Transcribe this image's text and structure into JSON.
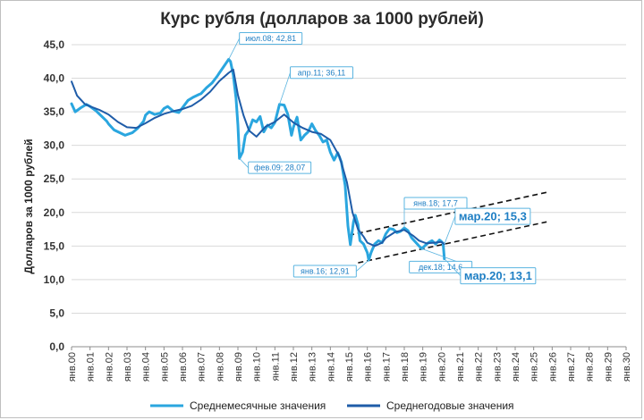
{
  "chart_data": {
    "type": "line",
    "title": "Курс рубля (долларов за 1000 рублей)",
    "ylabel": "Долларов за 1000 рублей",
    "xlabel": "",
    "ylim": [
      0,
      45
    ],
    "xlim": [
      2000,
      2030
    ],
    "yticks": [
      "0,0",
      "5,0",
      "10,0",
      "15,0",
      "20,0",
      "25,0",
      "30,0",
      "35,0",
      "40,0",
      "45,0"
    ],
    "xticks": [
      "янв.00",
      "янв.01",
      "янв.02",
      "янв.03",
      "янв.04",
      "янв.05",
      "янв.06",
      "янв.07",
      "янв.08",
      "янв.09",
      "янв.10",
      "янв.11",
      "янв.12",
      "янв.13",
      "янв.14",
      "янв.15",
      "янв.16",
      "янв.17",
      "янв.18",
      "янв.19",
      "янв.20",
      "янв.21",
      "янв.22",
      "янв.23",
      "янв.24",
      "янв.25",
      "янв.26",
      "янв.27",
      "янв.28",
      "янв.29",
      "янв.30"
    ],
    "series": [
      {
        "name": "Среднемесячные значения",
        "color": "#2aa6df",
        "points": [
          [
            2000.0,
            36.2
          ],
          [
            2000.2,
            35.0
          ],
          [
            2000.5,
            35.6
          ],
          [
            2000.8,
            36.1
          ],
          [
            2001.0,
            35.8
          ],
          [
            2001.3,
            35.2
          ],
          [
            2001.6,
            34.4
          ],
          [
            2001.9,
            33.6
          ],
          [
            2002.0,
            33.2
          ],
          [
            2002.3,
            32.3
          ],
          [
            2002.6,
            31.9
          ],
          [
            2002.9,
            31.5
          ],
          [
            2003.0,
            31.6
          ],
          [
            2003.3,
            31.9
          ],
          [
            2003.6,
            32.6
          ],
          [
            2003.9,
            33.6
          ],
          [
            2004.0,
            34.5
          ],
          [
            2004.2,
            35.0
          ],
          [
            2004.5,
            34.6
          ],
          [
            2004.8,
            34.8
          ],
          [
            2005.0,
            35.5
          ],
          [
            2005.2,
            35.8
          ],
          [
            2005.5,
            35.1
          ],
          [
            2005.8,
            34.9
          ],
          [
            2006.0,
            35.6
          ],
          [
            2006.3,
            36.7
          ],
          [
            2006.6,
            37.2
          ],
          [
            2006.9,
            37.6
          ],
          [
            2007.0,
            37.7
          ],
          [
            2007.3,
            38.6
          ],
          [
            2007.6,
            39.3
          ],
          [
            2007.9,
            40.4
          ],
          [
            2008.0,
            40.8
          ],
          [
            2008.3,
            42.0
          ],
          [
            2008.5,
            42.81
          ],
          [
            2008.6,
            42.5
          ],
          [
            2008.75,
            40.5
          ],
          [
            2008.9,
            37.0
          ],
          [
            2009.0,
            33.0
          ],
          [
            2009.08,
            28.07
          ],
          [
            2009.25,
            29.0
          ],
          [
            2009.4,
            31.5
          ],
          [
            2009.6,
            32.3
          ],
          [
            2009.8,
            33.8
          ],
          [
            2010.0,
            33.5
          ],
          [
            2010.2,
            34.3
          ],
          [
            2010.4,
            32.0
          ],
          [
            2010.6,
            33.0
          ],
          [
            2010.8,
            32.6
          ],
          [
            2011.0,
            33.4
          ],
          [
            2011.15,
            35.0
          ],
          [
            2011.25,
            36.11
          ],
          [
            2011.5,
            36.0
          ],
          [
            2011.7,
            34.6
          ],
          [
            2011.9,
            31.5
          ],
          [
            2012.0,
            32.7
          ],
          [
            2012.2,
            34.2
          ],
          [
            2012.4,
            30.8
          ],
          [
            2012.6,
            31.5
          ],
          [
            2012.8,
            32.0
          ],
          [
            2013.0,
            33.2
          ],
          [
            2013.2,
            32.2
          ],
          [
            2013.4,
            31.5
          ],
          [
            2013.6,
            30.5
          ],
          [
            2013.8,
            30.8
          ],
          [
            2014.0,
            29.0
          ],
          [
            2014.2,
            27.8
          ],
          [
            2014.4,
            28.9
          ],
          [
            2014.6,
            27.5
          ],
          [
            2014.8,
            24.0
          ],
          [
            2014.95,
            18.0
          ],
          [
            2015.08,
            15.2
          ],
          [
            2015.25,
            18.6
          ],
          [
            2015.35,
            19.6
          ],
          [
            2015.5,
            18.2
          ],
          [
            2015.6,
            15.8
          ],
          [
            2015.8,
            15.3
          ],
          [
            2016.0,
            14.0
          ],
          [
            2016.08,
            12.91
          ],
          [
            2016.2,
            14.0
          ],
          [
            2016.4,
            15.3
          ],
          [
            2016.6,
            15.8
          ],
          [
            2016.8,
            15.5
          ],
          [
            2017.0,
            16.8
          ],
          [
            2017.2,
            17.6
          ],
          [
            2017.4,
            17.5
          ],
          [
            2017.6,
            17.0
          ],
          [
            2017.8,
            17.2
          ],
          [
            2018.0,
            17.7
          ],
          [
            2018.2,
            17.3
          ],
          [
            2018.4,
            16.2
          ],
          [
            2018.6,
            15.6
          ],
          [
            2018.8,
            15.0
          ],
          [
            2018.95,
            14.6
          ],
          [
            2019.1,
            15.0
          ],
          [
            2019.3,
            15.5
          ],
          [
            2019.5,
            15.8
          ],
          [
            2019.7,
            15.3
          ],
          [
            2019.9,
            15.9
          ],
          [
            2020.0,
            15.7
          ],
          [
            2020.1,
            15.4
          ],
          [
            2020.17,
            13.1
          ]
        ]
      },
      {
        "name": "Среднегодовые значения",
        "color": "#1f5ca8",
        "points": [
          [
            2000.0,
            39.5
          ],
          [
            2000.3,
            37.4
          ],
          [
            2000.7,
            36.2
          ],
          [
            2001.0,
            35.8
          ],
          [
            2001.5,
            35.3
          ],
          [
            2002.0,
            34.6
          ],
          [
            2002.5,
            33.5
          ],
          [
            2003.0,
            32.7
          ],
          [
            2003.5,
            32.6
          ],
          [
            2004.0,
            33.3
          ],
          [
            2004.5,
            34.1
          ],
          [
            2005.0,
            34.7
          ],
          [
            2005.5,
            35.1
          ],
          [
            2006.0,
            35.4
          ],
          [
            2006.5,
            35.9
          ],
          [
            2007.0,
            36.8
          ],
          [
            2007.5,
            38.0
          ],
          [
            2008.0,
            39.6
          ],
          [
            2008.5,
            40.8
          ],
          [
            2008.75,
            41.3
          ],
          [
            2009.0,
            37.5
          ],
          [
            2009.3,
            34.5
          ],
          [
            2009.6,
            32.2
          ],
          [
            2010.0,
            31.3
          ],
          [
            2010.5,
            32.8
          ],
          [
            2011.0,
            33.5
          ],
          [
            2011.5,
            34.6
          ],
          [
            2012.0,
            33.4
          ],
          [
            2012.5,
            32.6
          ],
          [
            2013.0,
            32.0
          ],
          [
            2013.5,
            31.7
          ],
          [
            2014.0,
            30.8
          ],
          [
            2014.5,
            28.3
          ],
          [
            2014.9,
            24.5
          ],
          [
            2015.2,
            20.0
          ],
          [
            2015.5,
            17.5
          ],
          [
            2015.8,
            16.4
          ],
          [
            2016.0,
            15.5
          ],
          [
            2016.4,
            15.0
          ],
          [
            2016.8,
            15.5
          ],
          [
            2017.0,
            16.2
          ],
          [
            2017.5,
            17.1
          ],
          [
            2018.0,
            17.4
          ],
          [
            2018.5,
            16.5
          ],
          [
            2018.8,
            15.8
          ],
          [
            2019.2,
            15.4
          ],
          [
            2019.6,
            15.5
          ],
          [
            2020.0,
            15.6
          ],
          [
            2020.17,
            15.3
          ]
        ]
      }
    ],
    "trend_lines": [
      {
        "from": [
          2015.0,
          16.6
        ],
        "to": [
          2025.7,
          23.0
        ]
      },
      {
        "from": [
          2015.5,
          12.5
        ],
        "to": [
          2025.7,
          18.6
        ]
      }
    ],
    "annotations": [
      {
        "text": "июл.08; 42,81",
        "at": [
          2008.5,
          42.81
        ],
        "size": "small"
      },
      {
        "text": "апр.11; 36,11",
        "at": [
          2011.25,
          36.11
        ],
        "size": "small"
      },
      {
        "text": "фев.09; 28,07",
        "at": [
          2009.08,
          28.07
        ],
        "size": "small"
      },
      {
        "text": "янв.18;   17,7",
        "at": [
          2018.0,
          17.7
        ],
        "size": "small"
      },
      {
        "text": "янв.16; 12,91",
        "at": [
          2016.08,
          12.91
        ],
        "size": "small"
      },
      {
        "text": "дек.18;   14,6",
        "at": [
          2018.95,
          14.6
        ],
        "size": "small"
      },
      {
        "text": "мар.20;   15,3",
        "at": [
          2020.17,
          15.3
        ],
        "size": "big"
      },
      {
        "text": "мар.20;   13,1",
        "at": [
          2020.17,
          13.1
        ],
        "size": "big"
      }
    ],
    "legend": {
      "placement": "bottom",
      "items": [
        "Среднемесячные значения",
        "Среднегодовые значения"
      ]
    }
  }
}
